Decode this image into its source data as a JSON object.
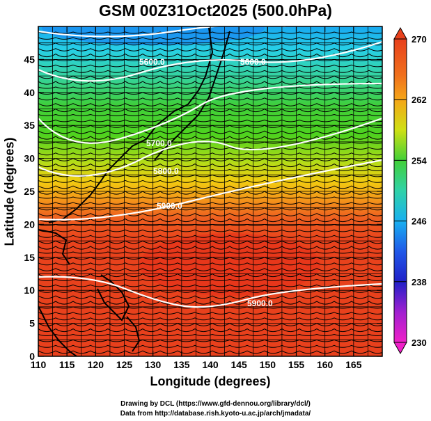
{
  "title": "GSM 00Z31Oct2025 (500.0hPa)",
  "x_axis": {
    "label": "Longitude (degrees)",
    "ticks": [
      "110",
      "115",
      "120",
      "125",
      "130",
      "135",
      "140",
      "145",
      "150",
      "155",
      "160",
      "165"
    ],
    "min": 110,
    "max": 170
  },
  "y_axis": {
    "label": "Latitude  (degrees)",
    "ticks": [
      "0",
      "5",
      "10",
      "15",
      "20",
      "25",
      "30",
      "35",
      "40",
      "45"
    ],
    "min": 0,
    "max": 50
  },
  "colorbar": {
    "labels": [
      "270",
      "262",
      "254",
      "246",
      "238",
      "230"
    ],
    "min": 230,
    "max": 270
  },
  "contour_labels": [
    "5600.0",
    "5600.0",
    "5700.0",
    "5800.0",
    "5900.0",
    "5900.0"
  ],
  "credits": [
    "Drawing by DCL (https://www.gfd-dennou.org/library/dcl/)",
    "Data from http://database.rish.kyoto-u.ac.jp/arch/jmadata/"
  ],
  "colors": {
    "warm": "#e8401c",
    "cool": "#2fb7ef",
    "contour": "#ffffff",
    "coast": "#000000"
  }
}
